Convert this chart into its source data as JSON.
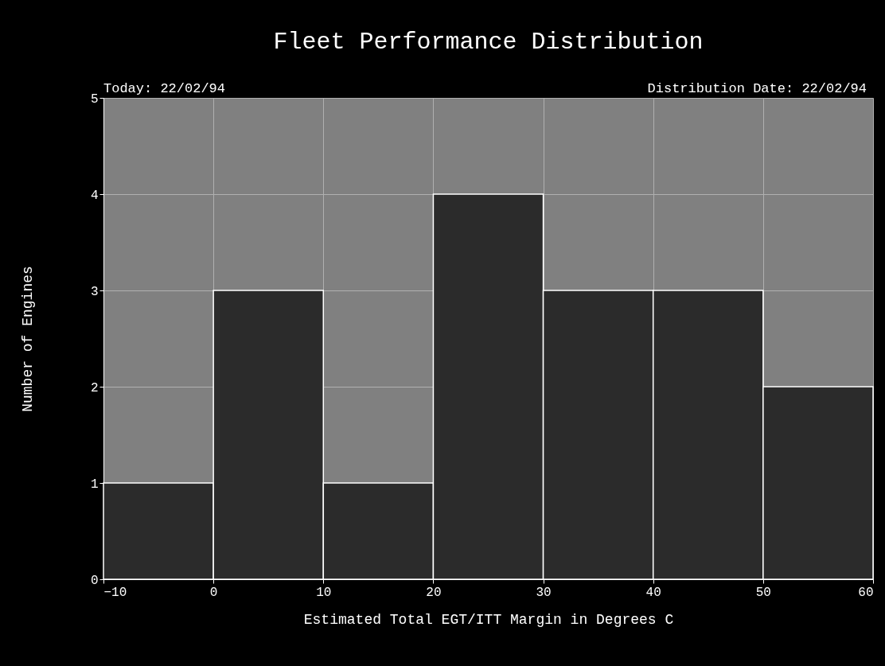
{
  "chart_data": {
    "type": "histogram",
    "title": "Fleet Performance Distribution",
    "annotations": [
      "Today: 22/02/94",
      "Distribution Date: 22/02/94"
    ],
    "xlabel": "Estimated Total EGT/ITT Margin in Degrees C",
    "ylabel": "Number of Engines",
    "bins": [
      -10,
      0,
      10,
      20,
      30,
      40,
      50,
      60
    ],
    "values": [
      1,
      3,
      1,
      4,
      3,
      3,
      2
    ],
    "color": "#2b2b2b",
    "xlim": [
      -10,
      60
    ],
    "xticks": [
      -10,
      0,
      10,
      20,
      30,
      40,
      50,
      60
    ],
    "ylim": [
      0,
      5
    ],
    "yticks": [
      0,
      1,
      2,
      3,
      4,
      5
    ],
    "grid": true
  }
}
